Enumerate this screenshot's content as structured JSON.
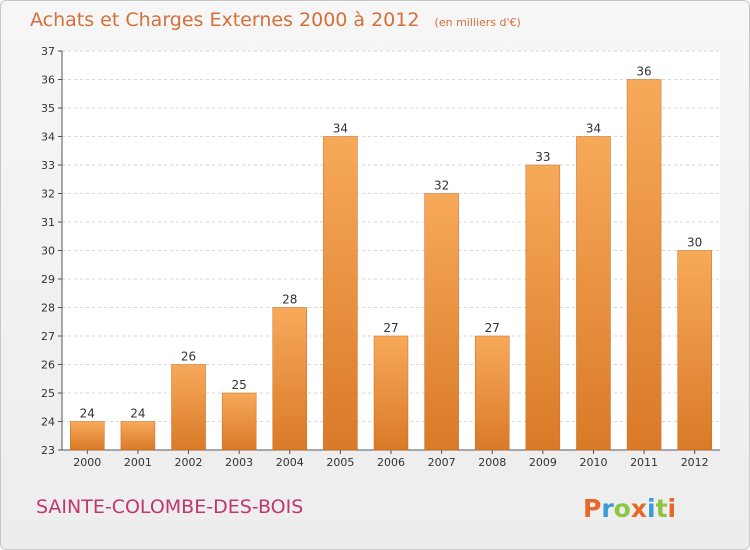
{
  "chart_data": {
    "type": "bar",
    "title": "Achats et Charges Externes 2000 à 2012",
    "subtitle": "(en milliers d'€)",
    "categories": [
      "2000",
      "2001",
      "2002",
      "2003",
      "2004",
      "2005",
      "2006",
      "2007",
      "2008",
      "2009",
      "2010",
      "2011",
      "2012"
    ],
    "values": [
      24,
      24,
      26,
      25,
      28,
      34,
      27,
      32,
      27,
      33,
      34,
      36,
      30
    ],
    "value_labels": [
      "24",
      "24",
      "26",
      "25",
      "28",
      "34",
      "27",
      "32",
      "27",
      "33",
      "34",
      "36",
      "30"
    ],
    "ylim": [
      23,
      37
    ],
    "yticks": [
      23,
      24,
      25,
      26,
      27,
      28,
      29,
      30,
      31,
      32,
      33,
      34,
      35,
      36,
      37
    ],
    "ytick_labels": [
      "23",
      "24",
      "25",
      "26",
      "27",
      "28",
      "29",
      "30",
      "31",
      "32",
      "33",
      "34",
      "35",
      "36",
      "37"
    ],
    "grid": true,
    "bar_color_top": "#f7a95a",
    "bar_color_bottom": "#d97a28"
  },
  "footer": {
    "commune": "SAINTE-COLOMBE-DES-BOIS",
    "logo_letters": [
      "P",
      "r",
      "o",
      "x",
      "i",
      "t",
      "i"
    ],
    "logo_colors": [
      "#e8682a",
      "#3b9ad8",
      "#8cc63f",
      "#e8682a",
      "#3b9ad8",
      "#8cc63f",
      "#e8682a"
    ]
  }
}
